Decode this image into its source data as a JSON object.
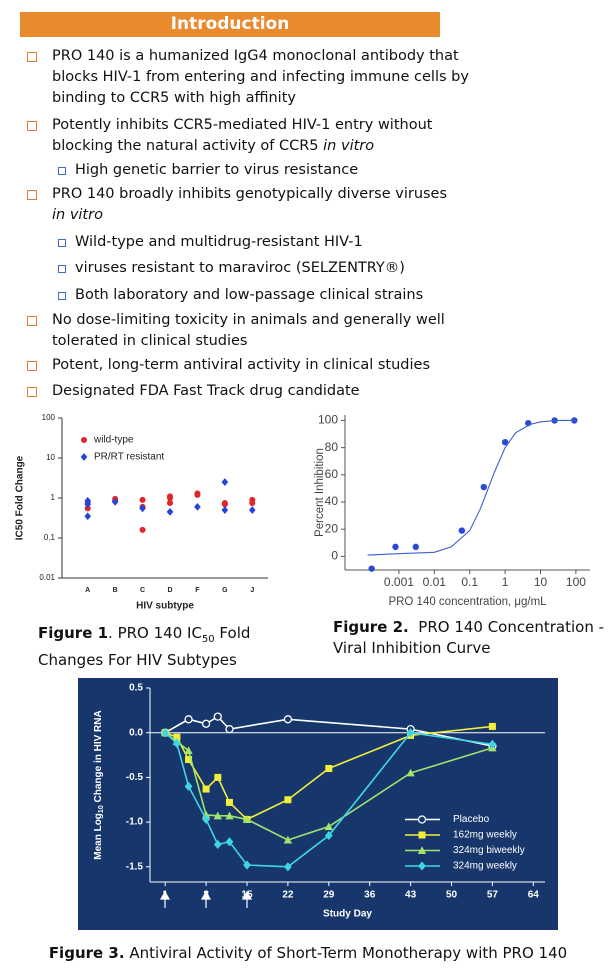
{
  "header": {
    "title": "Introduction"
  },
  "bullets": [
    {
      "text": "PRO 140 is a humanized IgG4 monoclonal antibody that blocks HIV-1 from entering and infecting immune cells by binding to CCR5 with high affinity"
    },
    {
      "text": "Potently inhibits CCR5-mediated HIV-1 entry without blocking the natural activity of CCR5 ",
      "italic": "in vitro",
      "subs": [
        "High genetic barrier to virus resistance"
      ]
    },
    {
      "text": "PRO 140 broadly inhibits genotypically diverse viruses",
      "italic": "in vitro",
      "subs": [
        "Wild-type and multidrug-resistant HIV-1",
        "viruses resistant to maraviroc (SELZENTRY®)",
        "Both laboratory and low-passage clinical strains"
      ]
    },
    {
      "text": "No dose-limiting toxicity in animals and generally well tolerated in clinical studies"
    },
    {
      "text": "Potent, long-term antiviral activity in clinical studies"
    },
    {
      "text": "Designated FDA Fast Track drug candidate"
    }
  ],
  "chart_data": [
    {
      "type": "scatter",
      "xlabel": "HIV subtype",
      "ylabel": "IC50 Fold Change",
      "categories": [
        "A",
        "B",
        "C",
        "D",
        "F",
        "G",
        "J"
      ],
      "ylim": [
        0.01,
        100
      ],
      "yticks": [
        0.01,
        0.1,
        1,
        10,
        100
      ],
      "ylog": true,
      "grid": false,
      "legend": "upper left",
      "series": [
        {
          "name": "wild-type",
          "color": "#e3242b",
          "marker": "circle",
          "mode": "markers",
          "x": [
            "A",
            "A",
            "B",
            "B",
            "C",
            "C",
            "C",
            "D",
            "D",
            "D",
            "F",
            "F",
            "G",
            "G",
            "J",
            "J"
          ],
          "values": [
            0.55,
            0.75,
            0.85,
            0.95,
            0.9,
            0.6,
            0.16,
            1.1,
            1.0,
            0.75,
            1.3,
            1.2,
            0.75,
            0.7,
            0.9,
            0.75
          ]
        },
        {
          "name": "PR/RT resistant",
          "color": "#2643d8",
          "marker": "diamond",
          "mode": "markers",
          "x": [
            "A",
            "A",
            "A",
            "B",
            "C",
            "D",
            "F",
            "G",
            "G",
            "J"
          ],
          "values": [
            0.85,
            0.7,
            0.35,
            0.8,
            0.55,
            0.45,
            0.6,
            2.5,
            0.5,
            0.5
          ]
        }
      ]
    },
    {
      "type": "scatter",
      "xlabel": "PRO 140 concentration, μg/mL",
      "ylabel": "Percent Inhibition",
      "xlim": [
        3e-05,
        250
      ],
      "xticks": [
        0.001,
        0.01,
        0.1,
        1,
        10,
        100
      ],
      "xlog": true,
      "ylim": [
        -10,
        104
      ],
      "yticks": [
        0,
        20,
        40,
        60,
        80,
        100
      ],
      "grid": false,
      "series": [
        {
          "color": "#2c49d6",
          "marker": "circle",
          "mode": "markers",
          "x": [
            0.00017,
            0.0008,
            0.003,
            0.06,
            0.25,
            1,
            4.5,
            25,
            90
          ],
          "values": [
            -9,
            7,
            7,
            19,
            51,
            84,
            98,
            100,
            100
          ]
        },
        {
          "color": "#3f5fd0",
          "mode": "lines",
          "x": [
            0.00013,
            0.001,
            0.01,
            0.03,
            0.1,
            0.2,
            0.3,
            0.5,
            1,
            2,
            5,
            10,
            30,
            100
          ],
          "values": [
            1,
            2,
            3,
            7,
            19,
            35,
            47,
            62,
            80,
            91,
            97,
            99,
            100,
            100
          ]
        }
      ]
    },
    {
      "type": "line",
      "xlabel": "Study Day",
      "ylabel": [
        "Mean Log",
        "10",
        " Change in HIV RNA"
      ],
      "xlim": [
        -1.6,
        66
      ],
      "xticks": [
        1,
        8,
        15,
        22,
        29,
        36,
        43,
        50,
        57,
        64
      ],
      "ylim": [
        -1.67,
        0.5
      ],
      "yticks": [
        {
          "value": -1.5,
          "label": "-1.5"
        },
        {
          "value": -1,
          "label": "-1.0"
        },
        -0.5,
        {
          "value": 0,
          "label": "0.0"
        },
        0.5
      ],
      "grid": false,
      "legend": "lower right",
      "series": [
        {
          "name": "Placebo",
          "color": "#ffffff",
          "marker": "open-circle",
          "mode": "lines+markers",
          "x": [
            1,
            5,
            8,
            10,
            12,
            22,
            43,
            57
          ],
          "values": [
            0,
            0.15,
            0.1,
            0.18,
            0.04,
            0.15,
            0.04,
            -0.15
          ]
        },
        {
          "name": "162mg weekly",
          "color": "#f2ee3a",
          "marker": "square",
          "mode": "lines+markers",
          "x": [
            1,
            3,
            5,
            8,
            10,
            12,
            15,
            22,
            29,
            43,
            57
          ],
          "values": [
            0,
            -0.05,
            -0.3,
            -0.63,
            -0.5,
            -0.78,
            -0.97,
            -0.75,
            -0.4,
            -0.03,
            0.07
          ]
        },
        {
          "name": "324mg biweekly",
          "color": "#9fe46c",
          "marker": "triangle",
          "mode": "lines+markers",
          "x": [
            1,
            3,
            5,
            8,
            10,
            12,
            15,
            22,
            29,
            43,
            57
          ],
          "values": [
            0,
            -0.1,
            -0.2,
            -0.92,
            -0.93,
            -0.93,
            -0.97,
            -1.2,
            -1.05,
            -0.45,
            -0.17
          ]
        },
        {
          "name": "324mg weekly",
          "color": "#3ed6e4",
          "marker": "diamond",
          "mode": "lines+markers",
          "x": [
            1,
            3,
            5,
            8,
            10,
            12,
            15,
            22,
            29,
            43,
            57
          ],
          "values": [
            0,
            -0.12,
            -0.6,
            -0.97,
            -1.25,
            -1.22,
            -1.48,
            -1.5,
            -1.15,
            0,
            -0.13
          ]
        }
      ]
    }
  ],
  "captions": [
    {
      "label": "Figure 1",
      "parts": [
        ". PRO 140 IC",
        "50",
        " Fold Changes  For HIV Subtypes"
      ]
    },
    {
      "label": "Figure 2.",
      "parts": [
        "  PRO 140 Concentration - Viral Inhibition Curve"
      ]
    },
    {
      "label": "Figure 3.",
      "parts": [
        " Antiviral Activity of Short-Term Monotherapy with PRO 140"
      ]
    }
  ]
}
